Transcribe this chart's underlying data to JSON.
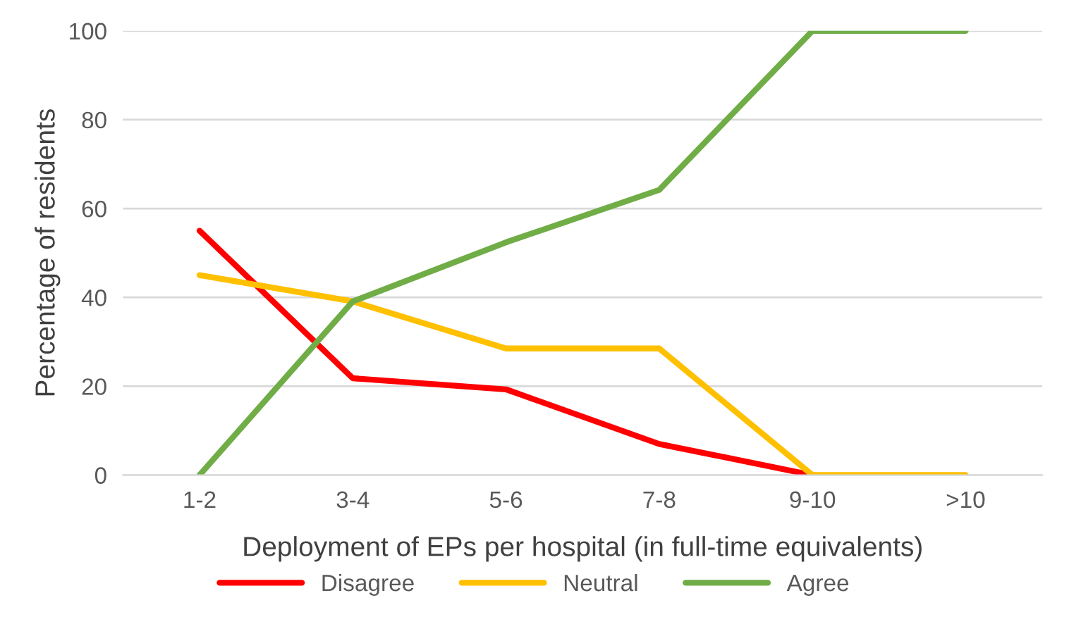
{
  "chart_data": {
    "type": "line",
    "xlabel": "Deployment of EPs per hospital (in full-time equivalents)",
    "ylabel": "Percentage of residents",
    "categories": [
      "1-2",
      "3-4",
      "5-6",
      "7-8",
      "9-10",
      ">10"
    ],
    "series": [
      {
        "name": "Disagree",
        "color": "#ff0000",
        "values": [
          55,
          21.8,
          19.3,
          7,
          0,
          null
        ]
      },
      {
        "name": "Neutral",
        "color": "#ffc000",
        "values": [
          45,
          39.1,
          28.5,
          28.5,
          0,
          0
        ]
      },
      {
        "name": "Agree",
        "color": "#70ad47",
        "values": [
          0,
          39.1,
          52.4,
          64.2,
          100,
          100
        ]
      }
    ],
    "ylim": [
      0,
      100
    ],
    "yticks": [
      0,
      20,
      40,
      60,
      80,
      100
    ],
    "grid": "y",
    "legend": "bottom",
    "marker": "none",
    "line_style": "solid"
  }
}
